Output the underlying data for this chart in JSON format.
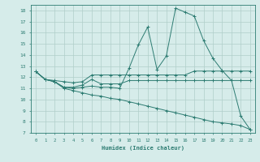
{
  "xlabel": "Humidex (Indice chaleur)",
  "background_color": "#d6ecea",
  "line_color": "#2d7c72",
  "grid_color": "#b0ceca",
  "xlim": [
    -0.5,
    23.5
  ],
  "ylim": [
    7,
    18.5
  ],
  "xticks": [
    0,
    1,
    2,
    3,
    4,
    5,
    6,
    7,
    8,
    9,
    10,
    11,
    12,
    13,
    14,
    15,
    16,
    17,
    18,
    19,
    20,
    21,
    22,
    23
  ],
  "yticks": [
    7,
    8,
    9,
    10,
    11,
    12,
    13,
    14,
    15,
    16,
    17,
    18
  ],
  "lines": [
    {
      "x": [
        0,
        1,
        2,
        3,
        4,
        5,
        6,
        7,
        8,
        9,
        10,
        11,
        12,
        13,
        14,
        15,
        16,
        17,
        18,
        19,
        20,
        21,
        22,
        23
      ],
      "y": [
        12.5,
        11.8,
        11.6,
        11.1,
        11.0,
        11.1,
        11.2,
        11.1,
        11.1,
        11.0,
        12.8,
        14.9,
        16.5,
        12.7,
        13.9,
        18.2,
        17.85,
        17.5,
        15.3,
        13.7,
        12.6,
        11.7,
        8.5,
        7.3
      ]
    },
    {
      "x": [
        0,
        1,
        2,
        3,
        4,
        5,
        6,
        7,
        8,
        9,
        10,
        11,
        12,
        13,
        14,
        15,
        16,
        17,
        18,
        19,
        20,
        21,
        22,
        23
      ],
      "y": [
        12.5,
        11.8,
        11.7,
        11.6,
        11.5,
        11.6,
        12.2,
        12.2,
        12.2,
        12.2,
        12.2,
        12.2,
        12.2,
        12.2,
        12.2,
        12.2,
        12.2,
        12.55,
        12.55,
        12.55,
        12.55,
        12.55,
        12.55,
        12.55
      ]
    },
    {
      "x": [
        0,
        1,
        2,
        3,
        4,
        5,
        6,
        7,
        8,
        9,
        10,
        11,
        12,
        13,
        14,
        15,
        16,
        17,
        18,
        19,
        20,
        21,
        22,
        23
      ],
      "y": [
        12.5,
        11.8,
        11.6,
        11.1,
        11.1,
        11.3,
        11.8,
        11.4,
        11.4,
        11.4,
        11.7,
        11.7,
        11.7,
        11.7,
        11.7,
        11.7,
        11.7,
        11.7,
        11.7,
        11.7,
        11.7,
        11.7,
        11.7,
        11.7
      ]
    },
    {
      "x": [
        0,
        1,
        2,
        3,
        4,
        5,
        6,
        7,
        8,
        9,
        10,
        11,
        12,
        13,
        14,
        15,
        16,
        17,
        18,
        19,
        20,
        21,
        22,
        23
      ],
      "y": [
        12.5,
        11.8,
        11.6,
        11.0,
        10.8,
        10.6,
        10.4,
        10.3,
        10.1,
        10.0,
        9.8,
        9.6,
        9.4,
        9.2,
        9.0,
        8.8,
        8.6,
        8.4,
        8.2,
        8.0,
        7.9,
        7.8,
        7.65,
        7.3
      ]
    }
  ]
}
